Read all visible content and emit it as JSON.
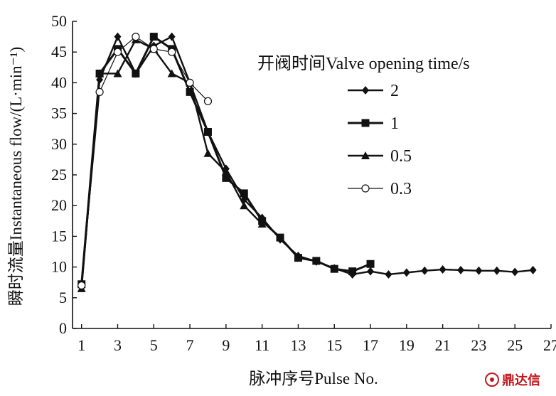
{
  "chart_data": {
    "type": "line",
    "xlabel": "脉冲序号Pulse No.",
    "ylabel": "瞬时流量Instantaneous flow/(L·min⁻¹)",
    "xlim": [
      0.5,
      27
    ],
    "ylim": [
      0,
      50
    ],
    "xticks": [
      1,
      3,
      5,
      7,
      9,
      11,
      13,
      15,
      17,
      19,
      21,
      23,
      25,
      27
    ],
    "yticks": [
      0,
      5,
      10,
      15,
      20,
      25,
      30,
      35,
      40,
      45,
      50
    ],
    "grid": false,
    "legend_title": "开阀时间Valve opening time/s",
    "legend_position": "top-right",
    "series": [
      {
        "name": "2",
        "marker": "diamond",
        "x": [
          1,
          2,
          3,
          4,
          5,
          6,
          7,
          8,
          9,
          10,
          11,
          12,
          13,
          14,
          15,
          16,
          17,
          18,
          19,
          20,
          21,
          22,
          23,
          24,
          25,
          26
        ],
        "y": [
          7.0,
          40.5,
          47.5,
          41.5,
          46.0,
          47.5,
          40.0,
          32.0,
          26.0,
          21.0,
          18.0,
          14.5,
          11.8,
          10.9,
          9.8,
          8.8,
          9.3,
          8.8,
          9.1,
          9.4,
          9.6,
          9.5,
          9.4,
          9.4,
          9.2,
          9.5
        ]
      },
      {
        "name": "1",
        "marker": "square",
        "x": [
          1,
          2,
          3,
          4,
          5,
          6,
          7,
          8,
          9,
          10,
          11,
          12,
          13,
          14,
          15,
          16,
          17
        ],
        "y": [
          7.2,
          41.5,
          45.5,
          41.5,
          47.5,
          45.5,
          38.5,
          32.0,
          24.5,
          22.0,
          17.5,
          14.8,
          11.5,
          11.0,
          9.7,
          9.3,
          10.5
        ]
      },
      {
        "name": "0.5",
        "marker": "triangle",
        "x": [
          1,
          2,
          3,
          4,
          5,
          6,
          7,
          8,
          9,
          10,
          11
        ],
        "y": [
          6.5,
          41.5,
          41.5,
          47.0,
          45.5,
          41.5,
          40.0,
          28.5,
          25.5,
          20.0,
          17.0
        ]
      },
      {
        "name": "0.3",
        "marker": "circle-open",
        "x": [
          1,
          2,
          3,
          4,
          5,
          6,
          7,
          8
        ],
        "y": [
          7.0,
          38.5,
          45.0,
          47.5,
          45.5,
          45.0,
          40.0,
          37.0
        ]
      }
    ]
  },
  "watermark": {
    "text": "鼎达信"
  }
}
